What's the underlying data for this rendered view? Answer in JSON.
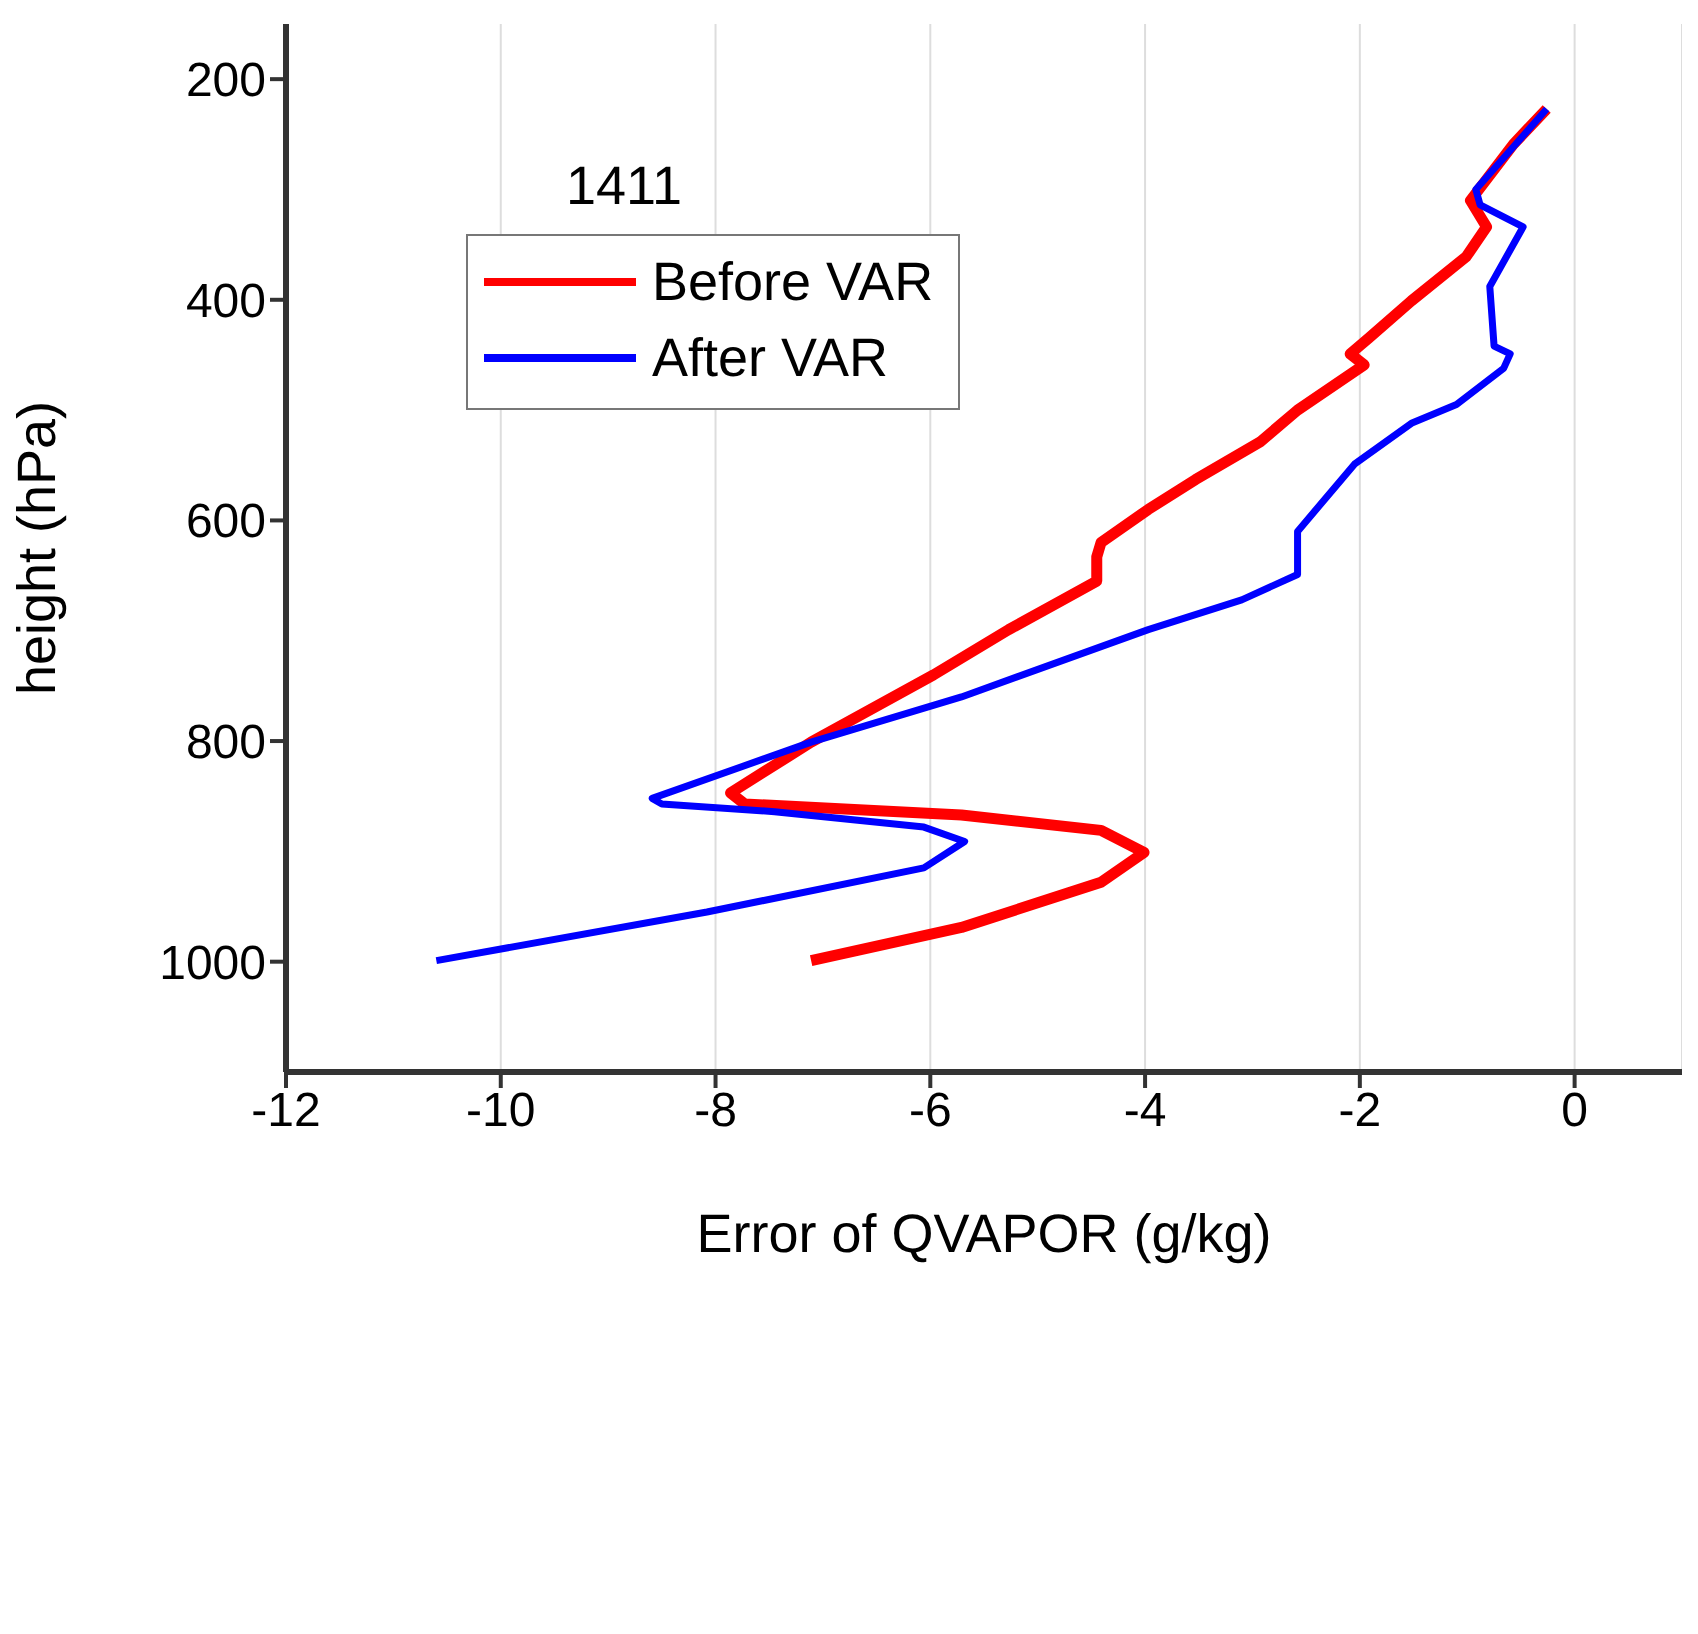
{
  "chart_data": {
    "type": "line",
    "legend_title": "1411",
    "xlabel": "Error of QVAPOR (g/kg)",
    "ylabel": "height (hPa)",
    "xlim": [
      -12,
      1
    ],
    "xticks": [
      -12,
      -10,
      -8,
      -6,
      -4,
      -2,
      0
    ],
    "ylim": [
      1100,
      150
    ],
    "yticks": [
      200,
      400,
      600,
      800,
      1000
    ],
    "grid": "x",
    "legend": "top left",
    "line_style": "solid",
    "marker": "none",
    "series": [
      {
        "name": "Before VAR",
        "color": "#ff0000",
        "x": [
          -0.26,
          -0.57,
          -0.97,
          -0.82,
          -1.01,
          -1.52,
          -1.92,
          -2.09,
          -1.96,
          -2.58,
          -2.93,
          -3.53,
          -3.97,
          -4.41,
          -4.45,
          -4.45,
          -5.27,
          -5.97,
          -7.11,
          -7.86,
          -7.73,
          -5.71,
          -4.41,
          -4.01,
          -4.41,
          -5.71,
          -7.11
        ],
        "values": [
          227,
          259,
          310,
          334,
          361,
          401,
          435,
          449,
          459,
          500,
          529,
          563,
          590,
          620,
          633,
          655,
          699,
          740,
          801,
          847,
          857,
          867,
          881,
          901,
          928,
          969,
          999
        ]
      },
      {
        "name": "After VAR",
        "color": "#0000ff",
        "x": [
          -0.26,
          -0.92,
          -0.88,
          -0.48,
          -0.79,
          -0.75,
          -0.6,
          -0.66,
          -1.1,
          -1.52,
          -2.05,
          -2.58,
          -2.58,
          -2.58,
          -3.1,
          -3.97,
          -5.71,
          -7.11,
          -8.59,
          -8.5,
          -7.45,
          -6.06,
          -5.68,
          -6.06,
          -8.08,
          -10.6
        ],
        "values": [
          227,
          300,
          314,
          334,
          388,
          442,
          449,
          462,
          495,
          512,
          549,
          610,
          633,
          649,
          672,
          699,
          760,
          801,
          852,
          857,
          864,
          878,
          891,
          915,
          955,
          999
        ]
      }
    ]
  }
}
